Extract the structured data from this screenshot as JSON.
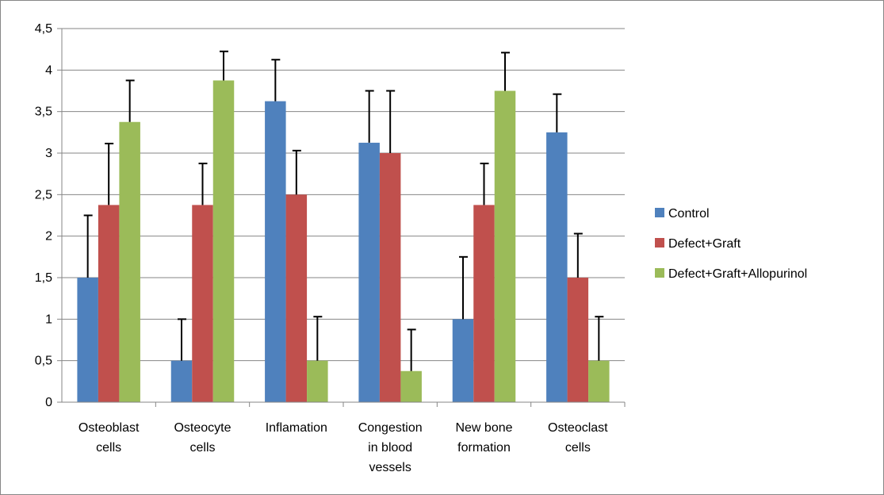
{
  "chart_data": {
    "type": "bar",
    "categories": [
      [
        "Osteoblast",
        "cells"
      ],
      [
        "Osteocyte",
        "cells"
      ],
      [
        "Inflamation"
      ],
      [
        "Congestion",
        "in blood",
        "vessels"
      ],
      [
        "New bone",
        "formation"
      ],
      [
        "Osteoclast",
        "cells"
      ]
    ],
    "series": [
      {
        "name": "Control",
        "color": "#4f81bd",
        "values": [
          1.5,
          0.5,
          3.625,
          3.125,
          1.0,
          3.25
        ],
        "errors": [
          0.75,
          0.5,
          0.5,
          0.625,
          0.75,
          0.46
        ]
      },
      {
        "name": "Defect+Graft",
        "color": "#c0504d",
        "values": [
          2.375,
          2.375,
          2.5,
          3.0,
          2.375,
          1.5
        ],
        "errors": [
          0.74,
          0.5,
          0.53,
          0.75,
          0.5,
          0.53
        ]
      },
      {
        "name": "Defect+Graft+Allopurinol",
        "color": "#9bbb59",
        "values": [
          3.375,
          3.875,
          0.5,
          0.375,
          3.75,
          0.5
        ],
        "errors": [
          0.5,
          0.35,
          0.53,
          0.5,
          0.46,
          0.53
        ]
      }
    ],
    "y_ticks": [
      "0",
      "0,5",
      "1",
      "1,5",
      "2",
      "2,5",
      "3",
      "3,5",
      "4",
      "4,5"
    ],
    "ylim": [
      0,
      4.5
    ],
    "grid": true,
    "legend_position": "right",
    "error_bar_color": "#000000"
  }
}
